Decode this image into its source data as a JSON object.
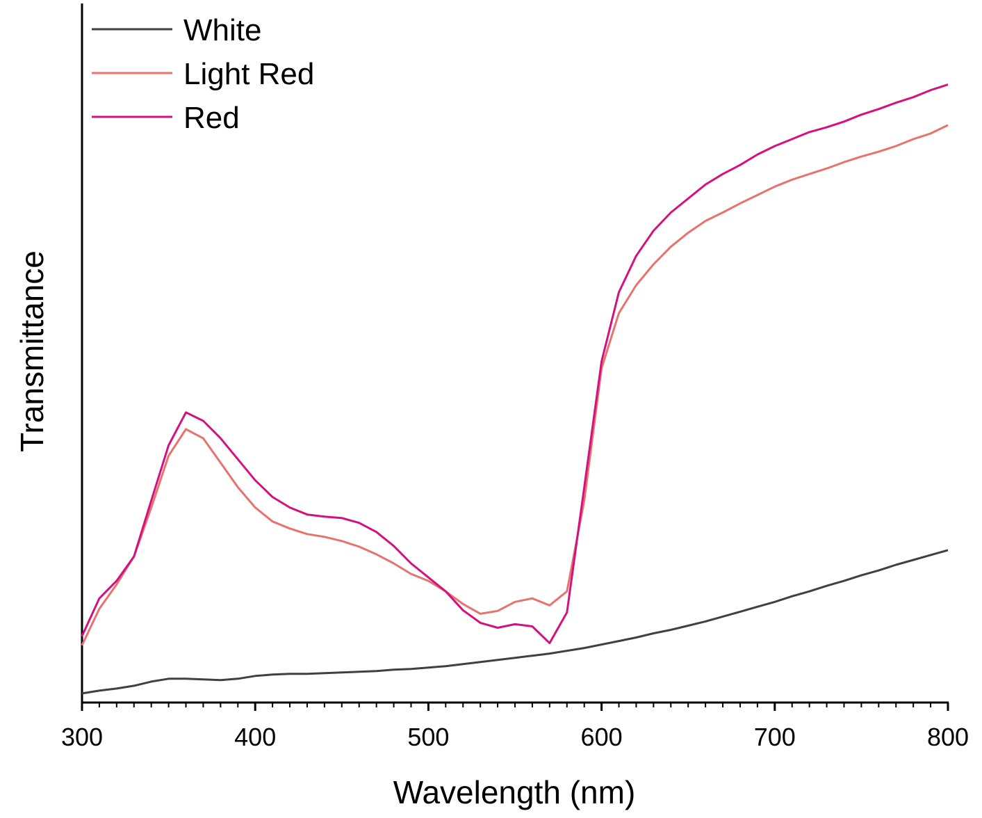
{
  "chart_data": {
    "type": "line",
    "xlabel": "Wavelength (nm)",
    "ylabel": "Transmittance",
    "x": [
      300,
      310,
      320,
      330,
      340,
      350,
      360,
      370,
      380,
      390,
      400,
      410,
      420,
      430,
      440,
      450,
      460,
      470,
      480,
      490,
      500,
      510,
      520,
      530,
      540,
      550,
      560,
      570,
      580,
      590,
      600,
      610,
      620,
      630,
      640,
      650,
      660,
      670,
      680,
      690,
      700,
      710,
      720,
      730,
      740,
      750,
      760,
      770,
      780,
      790,
      800
    ],
    "xlim": [
      300,
      800
    ],
    "xticks": [
      300,
      400,
      500,
      600,
      700,
      800
    ],
    "xminorticks": [
      310,
      320,
      330,
      340,
      350,
      360,
      370,
      380,
      390,
      410,
      420,
      430,
      440,
      450,
      460,
      470,
      480,
      490,
      510,
      520,
      530,
      540,
      550,
      560,
      570,
      580,
      590,
      610,
      620,
      630,
      640,
      650,
      660,
      670,
      680,
      690,
      710,
      720,
      730,
      740,
      750,
      760,
      770,
      780,
      790
    ],
    "ylim": [
      0,
      100
    ],
    "legend": "upper left",
    "series": [
      {
        "name": "White",
        "color": "#404040",
        "values": [
          1.3,
          1.7,
          2.0,
          2.4,
          3.0,
          3.4,
          3.4,
          3.3,
          3.2,
          3.4,
          3.8,
          4.0,
          4.1,
          4.1,
          4.2,
          4.3,
          4.4,
          4.5,
          4.7,
          4.8,
          5.0,
          5.2,
          5.5,
          5.8,
          6.1,
          6.4,
          6.7,
          7.0,
          7.4,
          7.8,
          8.3,
          8.8,
          9.3,
          9.9,
          10.4,
          11.0,
          11.6,
          12.3,
          13.0,
          13.7,
          14.4,
          15.2,
          15.9,
          16.7,
          17.4,
          18.2,
          18.9,
          19.7,
          20.4,
          21.1,
          21.8
        ]
      },
      {
        "name": "Light Red",
        "color": "#e8726e",
        "values": [
          8.2,
          13.4,
          16.9,
          20.9,
          27.9,
          35.3,
          39.1,
          37.8,
          34.3,
          30.8,
          27.9,
          25.9,
          24.9,
          24.1,
          23.7,
          23.1,
          22.3,
          21.2,
          19.9,
          18.4,
          17.4,
          15.9,
          14.1,
          12.7,
          13.1,
          14.4,
          14.9,
          13.9,
          15.9,
          28.9,
          47.8,
          55.7,
          59.7,
          62.7,
          65.2,
          67.2,
          68.9,
          70.1,
          71.4,
          72.6,
          73.8,
          74.8,
          75.6,
          76.4,
          77.3,
          78.1,
          78.8,
          79.6,
          80.6,
          81.4,
          82.6
        ]
      },
      {
        "name": "Red",
        "color": "#d4127f",
        "values": [
          9.5,
          14.9,
          17.4,
          20.9,
          28.9,
          36.8,
          41.5,
          40.3,
          37.8,
          34.8,
          31.8,
          29.4,
          27.9,
          26.9,
          26.6,
          26.4,
          25.7,
          24.4,
          22.4,
          19.9,
          17.9,
          15.9,
          13.2,
          11.4,
          10.7,
          11.2,
          10.9,
          8.5,
          12.9,
          30.8,
          48.8,
          58.7,
          63.9,
          67.5,
          70.1,
          72.1,
          74.1,
          75.6,
          76.9,
          78.4,
          79.6,
          80.6,
          81.6,
          82.3,
          83.1,
          84.1,
          84.9,
          85.8,
          86.6,
          87.6,
          88.4
        ]
      }
    ]
  }
}
